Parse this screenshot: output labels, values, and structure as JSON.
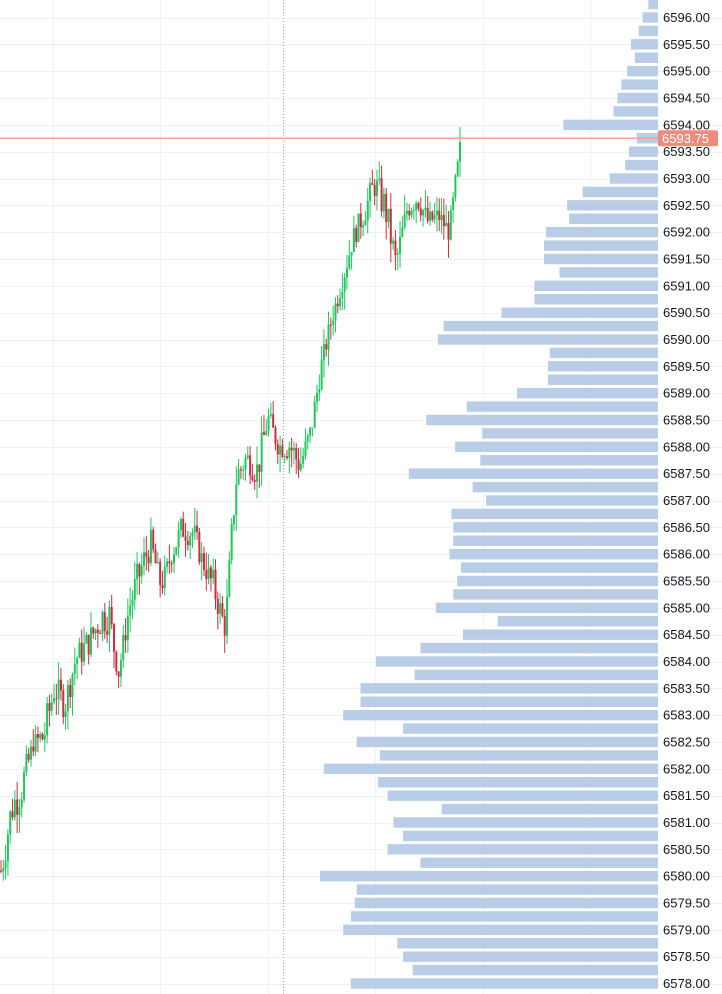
{
  "colors": {
    "up": "#22c55e",
    "down": "#cc2c3f",
    "volume_bar": "#b9cde6",
    "grid": "#eef1f5",
    "last_price_line": "#f4a59a",
    "last_price_badge": "#f08a7a",
    "crosshair": "#9aa0a6"
  },
  "last_price_label": "6593.75",
  "chart_data": {
    "type": "candlestick-with-volume-profile",
    "title": "",
    "ylim": [
      6577.9,
      6596.3
    ],
    "y_tick_labels": [
      "6596.00",
      "6595.50",
      "6595.00",
      "6594.50",
      "6594.00",
      "6593.50",
      "6593.00",
      "6592.50",
      "6592.00",
      "6591.50",
      "6591.00",
      "6590.50",
      "6590.00",
      "6589.50",
      "6589.00",
      "6588.50",
      "6588.00",
      "6587.50",
      "6587.00",
      "6586.50",
      "6586.00",
      "6585.50",
      "6585.00",
      "6584.50",
      "6584.00",
      "6583.50",
      "6583.00",
      "6582.50",
      "6582.00",
      "6581.50",
      "6581.00",
      "6580.50",
      "6580.00",
      "6579.50",
      "6579.00",
      "6578.50",
      "6578.00"
    ],
    "last_price": 6593.75,
    "price_path": [
      [
        6579.7,
        6580.5
      ],
      [
        6580.9,
        6581.6
      ],
      [
        6581.3,
        6582.1
      ],
      [
        6582.3,
        6582.6
      ],
      [
        6582.2,
        6583.0
      ],
      [
        6583.2,
        6583.8
      ],
      [
        6582.9,
        6583.5
      ],
      [
        6583.8,
        6584.3
      ],
      [
        6584.0,
        6584.6
      ],
      [
        6584.4,
        6584.9
      ],
      [
        6584.5,
        6585.5
      ],
      [
        6583.6,
        6583.9
      ],
      [
        6584.7,
        6585.3
      ],
      [
        6585.3,
        6586.0
      ],
      [
        6585.9,
        6586.5
      ],
      [
        6585.2,
        6585.6
      ],
      [
        6585.8,
        6586.2
      ],
      [
        6586.2,
        6586.8
      ],
      [
        6586.1,
        6586.7
      ],
      [
        6585.6,
        6586.0
      ],
      [
        6585.0,
        6585.7
      ],
      [
        6584.4,
        6584.8
      ],
      [
        6587.0,
        6587.8
      ],
      [
        6587.6,
        6588.0
      ],
      [
        6587.2,
        6587.9
      ],
      [
        6588.3,
        6588.8
      ],
      [
        6587.8,
        6588.2
      ],
      [
        6587.7,
        6588.4
      ],
      [
        6587.4,
        6587.9
      ],
      [
        6588.0,
        6588.5
      ],
      [
        6589.3,
        6589.7
      ],
      [
        6590.2,
        6590.6
      ],
      [
        6590.9,
        6591.3
      ],
      [
        6591.7,
        6592.1
      ],
      [
        6592.1,
        6592.6
      ],
      [
        6592.6,
        6593.2
      ],
      [
        6592.1,
        6592.8
      ],
      [
        6591.1,
        6591.7
      ],
      [
        6592.2,
        6592.6
      ],
      [
        6592.4,
        6592.9
      ],
      [
        6592.0,
        6592.4
      ],
      [
        6592.1,
        6592.5
      ],
      [
        6591.8,
        6592.2
      ],
      [
        6593.0,
        6593.8
      ]
    ],
    "candle_count": 200,
    "volume_profile": [
      {
        "price": 6596.25,
        "volume": 5
      },
      {
        "price": 6596.0,
        "volume": 8
      },
      {
        "price": 6595.75,
        "volume": 10
      },
      {
        "price": 6595.5,
        "volume": 14
      },
      {
        "price": 6595.25,
        "volume": 12
      },
      {
        "price": 6595.0,
        "volume": 16
      },
      {
        "price": 6594.75,
        "volume": 19
      },
      {
        "price": 6594.5,
        "volume": 21
      },
      {
        "price": 6594.25,
        "volume": 23
      },
      {
        "price": 6594.0,
        "volume": 49
      },
      {
        "price": 6593.75,
        "volume": 11
      },
      {
        "price": 6593.5,
        "volume": 15
      },
      {
        "price": 6593.25,
        "volume": 17
      },
      {
        "price": 6593.0,
        "volume": 25
      },
      {
        "price": 6592.75,
        "volume": 39
      },
      {
        "price": 6592.5,
        "volume": 47
      },
      {
        "price": 6592.25,
        "volume": 46
      },
      {
        "price": 6592.0,
        "volume": 58
      },
      {
        "price": 6591.75,
        "volume": 59
      },
      {
        "price": 6591.5,
        "volume": 59
      },
      {
        "price": 6591.25,
        "volume": 51
      },
      {
        "price": 6591.0,
        "volume": 64
      },
      {
        "price": 6590.75,
        "volume": 64
      },
      {
        "price": 6590.5,
        "volume": 81
      },
      {
        "price": 6590.25,
        "volume": 111
      },
      {
        "price": 6590.0,
        "volume": 114
      },
      {
        "price": 6589.75,
        "volume": 56
      },
      {
        "price": 6589.5,
        "volume": 57
      },
      {
        "price": 6589.25,
        "volume": 57
      },
      {
        "price": 6589.0,
        "volume": 73
      },
      {
        "price": 6588.75,
        "volume": 99
      },
      {
        "price": 6588.5,
        "volume": 120
      },
      {
        "price": 6588.25,
        "volume": 91
      },
      {
        "price": 6588.0,
        "volume": 105
      },
      {
        "price": 6587.75,
        "volume": 92
      },
      {
        "price": 6587.5,
        "volume": 129
      },
      {
        "price": 6587.25,
        "volume": 96
      },
      {
        "price": 6587.0,
        "volume": 89
      },
      {
        "price": 6586.75,
        "volume": 107
      },
      {
        "price": 6586.5,
        "volume": 106
      },
      {
        "price": 6586.25,
        "volume": 106
      },
      {
        "price": 6586.0,
        "volume": 108
      },
      {
        "price": 6585.75,
        "volume": 102
      },
      {
        "price": 6585.5,
        "volume": 104
      },
      {
        "price": 6585.25,
        "volume": 106
      },
      {
        "price": 6585.0,
        "volume": 115
      },
      {
        "price": 6584.75,
        "volume": 83
      },
      {
        "price": 6584.5,
        "volume": 101
      },
      {
        "price": 6584.25,
        "volume": 123
      },
      {
        "price": 6584.0,
        "volume": 146
      },
      {
        "price": 6583.75,
        "volume": 126
      },
      {
        "price": 6583.5,
        "volume": 154
      },
      {
        "price": 6583.25,
        "volume": 154
      },
      {
        "price": 6583.0,
        "volume": 163
      },
      {
        "price": 6582.75,
        "volume": 132
      },
      {
        "price": 6582.5,
        "volume": 156
      },
      {
        "price": 6582.25,
        "volume": 144
      },
      {
        "price": 6582.0,
        "volume": 173
      },
      {
        "price": 6581.75,
        "volume": 145
      },
      {
        "price": 6581.5,
        "volume": 140
      },
      {
        "price": 6581.25,
        "volume": 112
      },
      {
        "price": 6581.0,
        "volume": 137
      },
      {
        "price": 6580.75,
        "volume": 132
      },
      {
        "price": 6580.5,
        "volume": 140
      },
      {
        "price": 6580.25,
        "volume": 123
      },
      {
        "price": 6580.0,
        "volume": 175
      },
      {
        "price": 6579.75,
        "volume": 156
      },
      {
        "price": 6579.5,
        "volume": 157
      },
      {
        "price": 6579.25,
        "volume": 159
      },
      {
        "price": 6579.0,
        "volume": 163
      },
      {
        "price": 6578.75,
        "volume": 135
      },
      {
        "price": 6578.5,
        "volume": 132
      },
      {
        "price": 6578.25,
        "volume": 127
      },
      {
        "price": 6578.0,
        "volume": 159
      }
    ]
  }
}
